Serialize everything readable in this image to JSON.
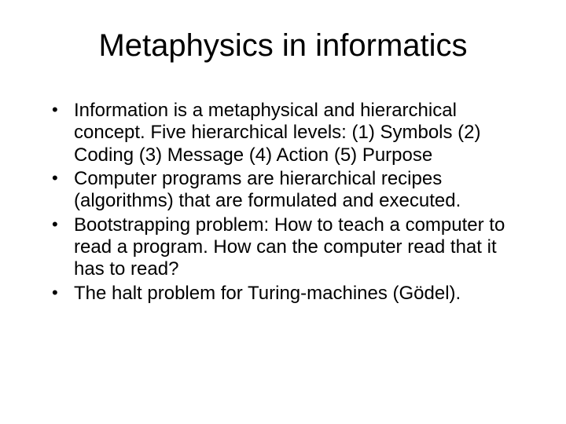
{
  "slide": {
    "title": "Metaphysics in informatics",
    "bullets": [
      "Information is a metaphysical and hierarchical concept. Five hierarchical levels:  (1) Symbols (2) Coding (3) Message (4) Action (5) Purpose",
      "Computer programs are hierarchical recipes (algorithms) that are formulated and executed.",
      "Bootstrapping problem: How to teach a computer to read a program. How can the computer read that it has to read?",
      "The halt problem for Turing-machines (Gödel)."
    ],
    "background_color": "#ffffff",
    "text_color": "#000000",
    "title_fontsize": 40,
    "body_fontsize": 24,
    "font_family": "Arial"
  }
}
